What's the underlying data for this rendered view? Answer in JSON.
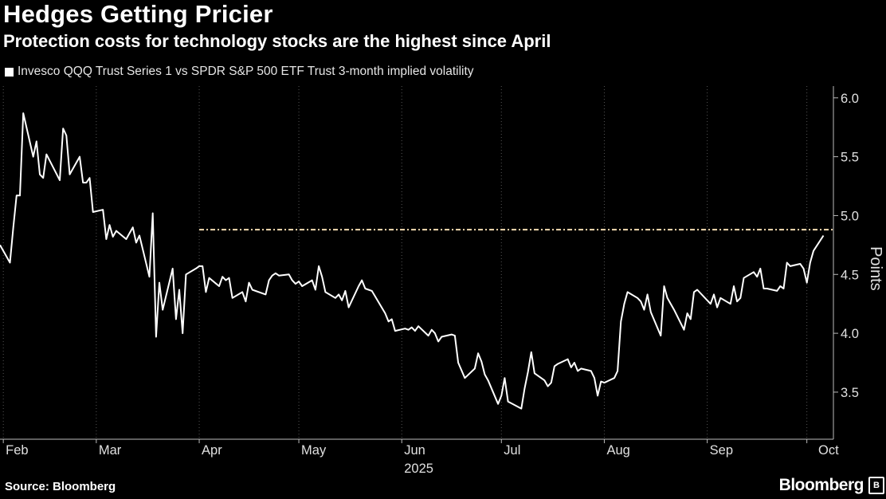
{
  "header": {
    "title": "Hedges Getting Pricier",
    "subtitle": "Protection costs for technology stocks are the highest since April"
  },
  "footer": {
    "source": "Source: Bloomberg",
    "brand": "Bloomberg"
  },
  "chart_data": {
    "type": "line",
    "ylabel": "Points",
    "ylim": [
      3.1,
      6.1
    ],
    "yticks": [
      3.5,
      4.0,
      4.5,
      5.0,
      5.5,
      6.0
    ],
    "ytick_labels": [
      "3.5",
      "4.0",
      "4.5",
      "5.0",
      "5.5",
      "6.0"
    ],
    "x_range": [
      "2025-01-31",
      "2025-10-09"
    ],
    "x_month_ticks": [
      "2025-02-01",
      "2025-03-01",
      "2025-04-01",
      "2025-05-01",
      "2025-06-01",
      "2025-07-01",
      "2025-08-01",
      "2025-09-01",
      "2025-10-01"
    ],
    "x_month_labels": [
      "Feb",
      "Mar",
      "Apr",
      "May",
      "Jun",
      "Jul",
      "Aug",
      "Sep",
      "Oct"
    ],
    "year_label": "2025",
    "grid": "vertical dotted at month starts",
    "legend": "top-left",
    "colors": {
      "series": "#ffffff",
      "reference_line": "#f5deb3",
      "grid": "#555555"
    },
    "reference_line": {
      "value": 4.88,
      "start": "2025-04-01",
      "end": "2025-10-10"
    },
    "series": [
      {
        "name": "Invesco QQQ Trust Series 1 vs SPDR S&P 500 ETF Trust 3-month implied volatility",
        "points": [
          [
            "2025-01-31",
            4.75
          ],
          [
            "2025-02-03",
            4.6
          ],
          [
            "2025-02-04",
            4.9
          ],
          [
            "2025-02-05",
            5.17
          ],
          [
            "2025-02-06",
            5.17
          ],
          [
            "2025-02-07",
            5.87
          ],
          [
            "2025-02-10",
            5.5
          ],
          [
            "2025-02-11",
            5.63
          ],
          [
            "2025-02-12",
            5.35
          ],
          [
            "2025-02-13",
            5.32
          ],
          [
            "2025-02-14",
            5.52
          ],
          [
            "2025-02-18",
            5.3
          ],
          [
            "2025-02-19",
            5.74
          ],
          [
            "2025-02-20",
            5.68
          ],
          [
            "2025-02-21",
            5.35
          ],
          [
            "2025-02-24",
            5.5
          ],
          [
            "2025-02-25",
            5.28
          ],
          [
            "2025-02-26",
            5.28
          ],
          [
            "2025-02-27",
            5.32
          ],
          [
            "2025-02-28",
            5.03
          ],
          [
            "2025-03-03",
            5.05
          ],
          [
            "2025-03-04",
            4.8
          ],
          [
            "2025-03-05",
            4.92
          ],
          [
            "2025-03-06",
            4.82
          ],
          [
            "2025-03-07",
            4.87
          ],
          [
            "2025-03-10",
            4.8
          ],
          [
            "2025-03-11",
            4.85
          ],
          [
            "2025-03-12",
            4.9
          ],
          [
            "2025-03-13",
            4.77
          ],
          [
            "2025-03-14",
            4.83
          ],
          [
            "2025-03-17",
            4.48
          ],
          [
            "2025-03-18",
            5.02
          ],
          [
            "2025-03-19",
            3.97
          ],
          [
            "2025-03-20",
            4.43
          ],
          [
            "2025-03-21",
            4.2
          ],
          [
            "2025-03-24",
            4.55
          ],
          [
            "2025-03-25",
            4.12
          ],
          [
            "2025-03-26",
            4.37
          ],
          [
            "2025-03-27",
            4.0
          ],
          [
            "2025-03-28",
            4.5
          ],
          [
            "2025-03-31",
            4.55
          ],
          [
            "2025-04-01",
            4.57
          ],
          [
            "2025-04-02",
            4.57
          ],
          [
            "2025-04-03",
            4.35
          ],
          [
            "2025-04-04",
            4.47
          ],
          [
            "2025-04-07",
            4.4
          ],
          [
            "2025-04-08",
            4.48
          ],
          [
            "2025-04-09",
            4.45
          ],
          [
            "2025-04-10",
            4.47
          ],
          [
            "2025-04-11",
            4.3
          ],
          [
            "2025-04-14",
            4.35
          ],
          [
            "2025-04-15",
            4.27
          ],
          [
            "2025-04-16",
            4.43
          ],
          [
            "2025-04-17",
            4.37
          ],
          [
            "2025-04-21",
            4.33
          ],
          [
            "2025-04-22",
            4.45
          ],
          [
            "2025-04-23",
            4.49
          ],
          [
            "2025-04-24",
            4.51
          ],
          [
            "2025-04-25",
            4.49
          ],
          [
            "2025-04-28",
            4.5
          ],
          [
            "2025-04-29",
            4.45
          ],
          [
            "2025-04-30",
            4.42
          ],
          [
            "2025-05-01",
            4.44
          ],
          [
            "2025-05-02",
            4.4
          ],
          [
            "2025-05-05",
            4.45
          ],
          [
            "2025-05-06",
            4.37
          ],
          [
            "2025-05-07",
            4.57
          ],
          [
            "2025-05-08",
            4.48
          ],
          [
            "2025-05-09",
            4.35
          ],
          [
            "2025-05-12",
            4.3
          ],
          [
            "2025-05-13",
            4.33
          ],
          [
            "2025-05-14",
            4.28
          ],
          [
            "2025-05-15",
            4.36
          ],
          [
            "2025-05-16",
            4.22
          ],
          [
            "2025-05-19",
            4.4
          ],
          [
            "2025-05-20",
            4.45
          ],
          [
            "2025-05-21",
            4.38
          ],
          [
            "2025-05-22",
            4.37
          ],
          [
            "2025-05-23",
            4.36
          ],
          [
            "2025-05-27",
            4.17
          ],
          [
            "2025-05-28",
            4.1
          ],
          [
            "2025-05-29",
            4.12
          ],
          [
            "2025-05-30",
            4.02
          ],
          [
            "2025-06-02",
            4.04
          ],
          [
            "2025-06-03",
            4.03
          ],
          [
            "2025-06-04",
            4.05
          ],
          [
            "2025-06-05",
            4.02
          ],
          [
            "2025-06-06",
            4.06
          ],
          [
            "2025-06-09",
            3.98
          ],
          [
            "2025-06-10",
            4.03
          ],
          [
            "2025-06-11",
            4.0
          ],
          [
            "2025-06-12",
            3.93
          ],
          [
            "2025-06-13",
            3.97
          ],
          [
            "2025-06-16",
            3.99
          ],
          [
            "2025-06-17",
            3.98
          ],
          [
            "2025-06-18",
            3.75
          ],
          [
            "2025-06-20",
            3.62
          ],
          [
            "2025-06-23",
            3.7
          ],
          [
            "2025-06-24",
            3.83
          ],
          [
            "2025-06-25",
            3.76
          ],
          [
            "2025-06-26",
            3.65
          ],
          [
            "2025-06-27",
            3.6
          ],
          [
            "2025-06-30",
            3.4
          ],
          [
            "2025-07-01",
            3.47
          ],
          [
            "2025-07-02",
            3.62
          ],
          [
            "2025-07-03",
            3.42
          ],
          [
            "2025-07-07",
            3.36
          ],
          [
            "2025-07-08",
            3.53
          ],
          [
            "2025-07-09",
            3.67
          ],
          [
            "2025-07-10",
            3.84
          ],
          [
            "2025-07-11",
            3.66
          ],
          [
            "2025-07-14",
            3.6
          ],
          [
            "2025-07-15",
            3.55
          ],
          [
            "2025-07-16",
            3.58
          ],
          [
            "2025-07-17",
            3.72
          ],
          [
            "2025-07-18",
            3.74
          ],
          [
            "2025-07-21",
            3.78
          ],
          [
            "2025-07-22",
            3.71
          ],
          [
            "2025-07-23",
            3.75
          ],
          [
            "2025-07-24",
            3.68
          ],
          [
            "2025-07-25",
            3.7
          ],
          [
            "2025-07-28",
            3.68
          ],
          [
            "2025-07-29",
            3.62
          ],
          [
            "2025-07-30",
            3.47
          ],
          [
            "2025-07-31",
            3.59
          ],
          [
            "2025-08-01",
            3.58
          ],
          [
            "2025-08-04",
            3.62
          ],
          [
            "2025-08-05",
            3.68
          ],
          [
            "2025-08-06",
            4.1
          ],
          [
            "2025-08-07",
            4.25
          ],
          [
            "2025-08-08",
            4.35
          ],
          [
            "2025-08-11",
            4.3
          ],
          [
            "2025-08-12",
            4.27
          ],
          [
            "2025-08-13",
            4.2
          ],
          [
            "2025-08-14",
            4.33
          ],
          [
            "2025-08-15",
            4.18
          ],
          [
            "2025-08-18",
            3.98
          ],
          [
            "2025-08-19",
            4.4
          ],
          [
            "2025-08-20",
            4.3
          ],
          [
            "2025-08-21",
            4.25
          ],
          [
            "2025-08-22",
            4.2
          ],
          [
            "2025-08-25",
            4.03
          ],
          [
            "2025-08-26",
            4.17
          ],
          [
            "2025-08-27",
            4.12
          ],
          [
            "2025-08-28",
            4.35
          ],
          [
            "2025-08-29",
            4.37
          ],
          [
            "2025-09-02",
            4.25
          ],
          [
            "2025-09-03",
            4.33
          ],
          [
            "2025-09-04",
            4.22
          ],
          [
            "2025-09-05",
            4.3
          ],
          [
            "2025-09-08",
            4.25
          ],
          [
            "2025-09-09",
            4.4
          ],
          [
            "2025-09-10",
            4.27
          ],
          [
            "2025-09-11",
            4.3
          ],
          [
            "2025-09-12",
            4.47
          ],
          [
            "2025-09-15",
            4.52
          ],
          [
            "2025-09-16",
            4.48
          ],
          [
            "2025-09-17",
            4.55
          ],
          [
            "2025-09-18",
            4.38
          ],
          [
            "2025-09-19",
            4.38
          ],
          [
            "2025-09-22",
            4.36
          ],
          [
            "2025-09-23",
            4.4
          ],
          [
            "2025-09-24",
            4.38
          ],
          [
            "2025-09-25",
            4.6
          ],
          [
            "2025-09-26",
            4.57
          ],
          [
            "2025-09-29",
            4.59
          ],
          [
            "2025-09-30",
            4.55
          ],
          [
            "2025-10-01",
            4.43
          ],
          [
            "2025-10-02",
            4.6
          ],
          [
            "2025-10-03",
            4.7
          ],
          [
            "2025-10-06",
            4.83
          ]
        ]
      }
    ]
  }
}
